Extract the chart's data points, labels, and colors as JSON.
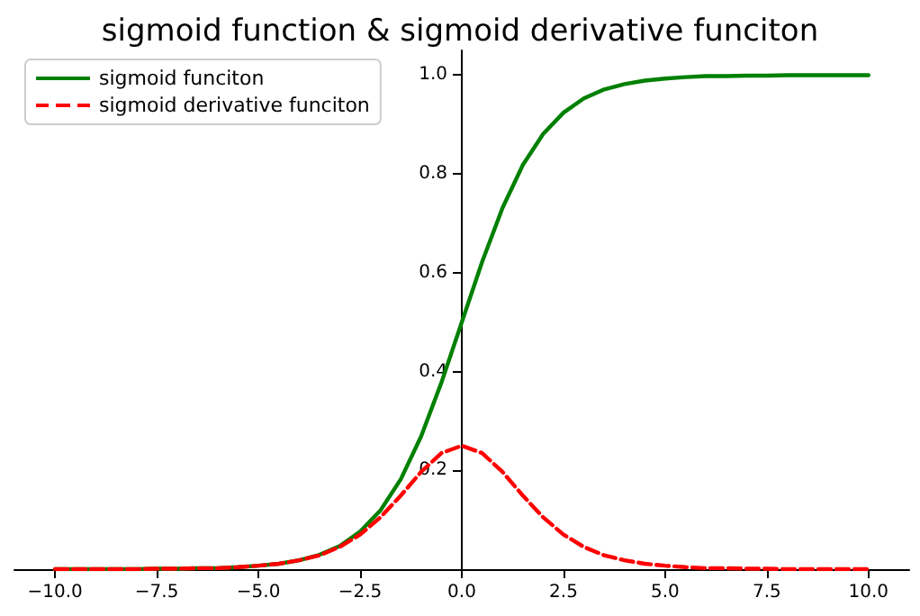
{
  "chart_data": {
    "type": "line",
    "title": "sigmoid function & sigmoid derivative funciton",
    "x": [
      -10,
      -9.5,
      -9,
      -8.5,
      -8,
      -7.5,
      -7,
      -6.5,
      -6,
      -5.5,
      -5,
      -4.5,
      -4,
      -3.5,
      -3,
      -2.5,
      -2,
      -1.5,
      -1,
      -0.5,
      0,
      0.5,
      1,
      1.5,
      2,
      2.5,
      3,
      3.5,
      4,
      4.5,
      5,
      5.5,
      6,
      6.5,
      7,
      7.5,
      8,
      8.5,
      9,
      9.5,
      10
    ],
    "series": [
      {
        "name": "sigmoid funciton",
        "color": "#008000",
        "line_style": "solid",
        "values": [
          0.0,
          0.0,
          0.0,
          0.0,
          0.0,
          0.001,
          0.001,
          0.002,
          0.002,
          0.004,
          0.007,
          0.011,
          0.018,
          0.029,
          0.047,
          0.076,
          0.119,
          0.182,
          0.269,
          0.378,
          0.5,
          0.622,
          0.731,
          0.818,
          0.881,
          0.924,
          0.953,
          0.971,
          0.982,
          0.989,
          0.993,
          0.996,
          0.998,
          0.998,
          0.999,
          0.999,
          1.0,
          1.0,
          1.0,
          1.0,
          1.0
        ]
      },
      {
        "name": "sigmoid derivative funciton",
        "color": "#ff0000",
        "line_style": "dashed",
        "values": [
          0.0,
          0.0,
          0.0,
          0.0,
          0.0,
          0.001,
          0.001,
          0.002,
          0.002,
          0.004,
          0.007,
          0.011,
          0.018,
          0.028,
          0.045,
          0.07,
          0.105,
          0.149,
          0.197,
          0.235,
          0.25,
          0.235,
          0.197,
          0.149,
          0.105,
          0.07,
          0.045,
          0.028,
          0.018,
          0.011,
          0.007,
          0.004,
          0.002,
          0.002,
          0.001,
          0.001,
          0.0,
          0.0,
          0.0,
          0.0,
          0.0
        ]
      }
    ],
    "xlim": [
      -11,
      11
    ],
    "xticks": [
      {
        "value": -10,
        "label": "−10.0"
      },
      {
        "value": -7.5,
        "label": "−7.5"
      },
      {
        "value": -5,
        "label": "−5.0"
      },
      {
        "value": -2.5,
        "label": "−2.5"
      },
      {
        "value": 0,
        "label": "0.0"
      },
      {
        "value": 2.5,
        "label": "2.5"
      },
      {
        "value": 5,
        "label": "5.0"
      },
      {
        "value": 7.5,
        "label": "7.5"
      },
      {
        "value": 10,
        "label": "10.0"
      }
    ],
    "ylim": [
      0,
      1.05
    ],
    "yticks": [
      0.2,
      0.4,
      0.6,
      0.8,
      {
        "value": 1,
        "label": "1.0"
      }
    ],
    "grid": false,
    "legend": "top left",
    "marker": "none"
  }
}
